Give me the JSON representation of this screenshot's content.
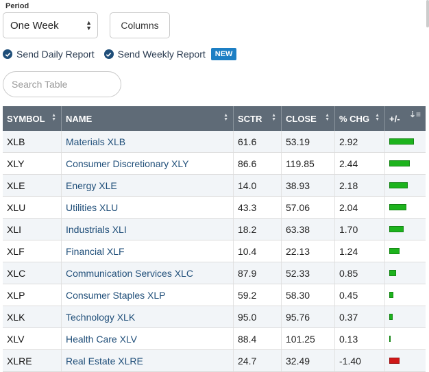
{
  "period": {
    "label": "Period",
    "selected": "One Week"
  },
  "columns_button": "Columns",
  "reports": {
    "daily": "Send Daily Report",
    "weekly": "Send Weekly Report",
    "badge": "NEW"
  },
  "search": {
    "placeholder": "Search Table"
  },
  "table": {
    "headers": {
      "symbol": "SYMBOL",
      "name": "NAME",
      "sctr": "SCTR",
      "close": "CLOSE",
      "chg": "% CHG",
      "bar": "+/-"
    },
    "max_abs_chg": 2.92,
    "positive_color": "#1db31d",
    "negative_color": "#d01818",
    "rows": [
      {
        "symbol": "XLB",
        "name": "Materials XLB",
        "sctr": "61.6",
        "close": "53.19",
        "chg": "2.92",
        "value": 2.92
      },
      {
        "symbol": "XLY",
        "name": "Consumer Discretionary XLY",
        "sctr": "86.6",
        "close": "119.85",
        "chg": "2.44",
        "value": 2.44
      },
      {
        "symbol": "XLE",
        "name": "Energy XLE",
        "sctr": "14.0",
        "close": "38.93",
        "chg": "2.18",
        "value": 2.18
      },
      {
        "symbol": "XLU",
        "name": "Utilities XLU",
        "sctr": "43.3",
        "close": "57.06",
        "chg": "2.04",
        "value": 2.04
      },
      {
        "symbol": "XLI",
        "name": "Industrials XLI",
        "sctr": "18.2",
        "close": "63.38",
        "chg": "1.70",
        "value": 1.7
      },
      {
        "symbol": "XLF",
        "name": "Financial XLF",
        "sctr": "10.4",
        "close": "22.13",
        "chg": "1.24",
        "value": 1.24
      },
      {
        "symbol": "XLC",
        "name": "Communication Services XLC",
        "sctr": "87.9",
        "close": "52.33",
        "chg": "0.85",
        "value": 0.85
      },
      {
        "symbol": "XLP",
        "name": "Consumer Staples XLP",
        "sctr": "59.2",
        "close": "58.30",
        "chg": "0.45",
        "value": 0.45
      },
      {
        "symbol": "XLK",
        "name": "Technology XLK",
        "sctr": "95.0",
        "close": "95.76",
        "chg": "0.37",
        "value": 0.37
      },
      {
        "symbol": "XLV",
        "name": "Health Care XLV",
        "sctr": "88.4",
        "close": "101.25",
        "chg": "0.13",
        "value": 0.13
      },
      {
        "symbol": "XLRE",
        "name": "Real Estate XLRE",
        "sctr": "24.7",
        "close": "32.49",
        "chg": "-1.40",
        "value": -1.4
      }
    ]
  }
}
